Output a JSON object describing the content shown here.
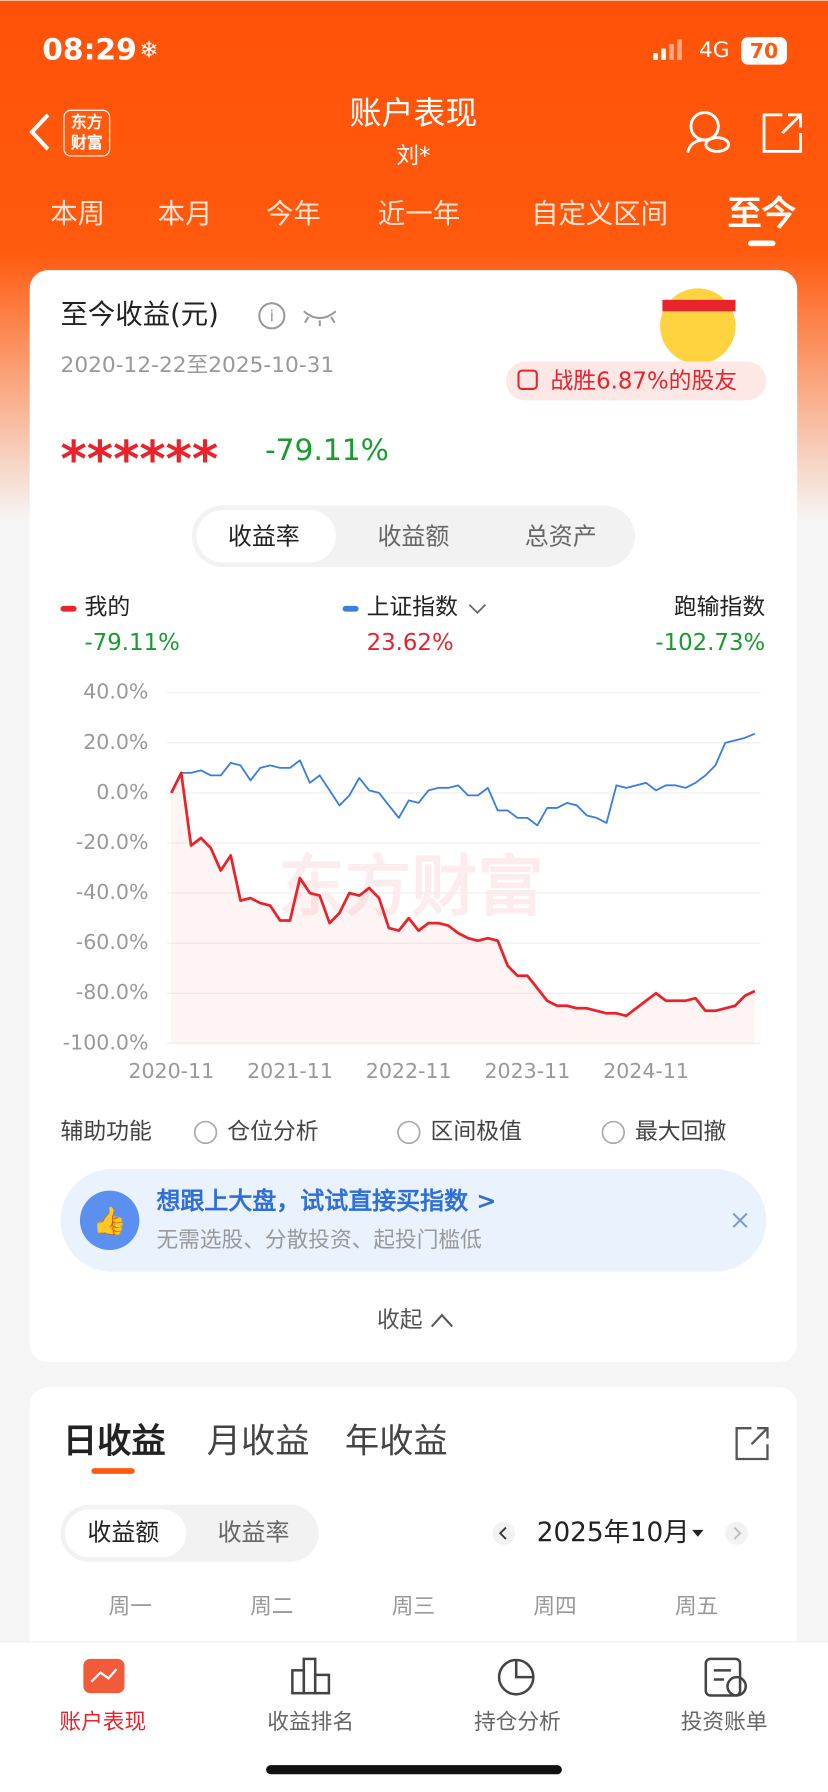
{
  "status_bar": {
    "time": "08:29",
    "network": "4G",
    "battery": "70"
  },
  "header": {
    "logo": [
      "东方",
      "财富"
    ],
    "title": "账户表现",
    "subtitle": "刘*"
  },
  "period_tabs": [
    "本周",
    "本月",
    "今年",
    "近一年",
    "自定义区间",
    "至今"
  ],
  "summary": {
    "title": "至今收益(元)",
    "date_range": "2020-12-22至2025-10-31",
    "badge": "战胜6.87%的股友",
    "amount": "******",
    "return": "-79.11%"
  },
  "metric_tabs": [
    "收益率",
    "收益额",
    "总资产"
  ],
  "chart_data": {
    "type": "line",
    "watermark": "东方财富",
    "series": [
      {
        "name": "我的",
        "color": "#e8232b",
        "summary": "-79.11%",
        "values": [
          0,
          8,
          -21,
          -18,
          -22,
          -31,
          -25,
          -43,
          -42,
          -44,
          -45,
          -51,
          -51,
          -34,
          -40,
          -41,
          -52,
          -48,
          -40,
          -41,
          -38,
          -42,
          -54,
          -55,
          -50,
          -55,
          -52,
          -52,
          -53,
          -56,
          -58,
          -59,
          -58,
          -59,
          -69,
          -73,
          -73,
          -78,
          -83,
          -85,
          -85,
          -86,
          -86,
          -87,
          -88,
          -88,
          -89,
          -86,
          -83,
          -80,
          -83,
          -83,
          -83,
          -82,
          -87,
          -87,
          -86,
          -85,
          -81,
          -79.11
        ]
      },
      {
        "name": "上证指数",
        "color": "#3a7ee0",
        "summary": "23.62%",
        "values": [
          0,
          8,
          8,
          9,
          7,
          7,
          12,
          11,
          5,
          10,
          11,
          10,
          10,
          13,
          4,
          7,
          1,
          -5,
          -1,
          6,
          1,
          0,
          -5,
          -10,
          -3,
          -4,
          1,
          2,
          2,
          3,
          -1,
          -1,
          2,
          -7,
          -7,
          -10,
          -10,
          -13,
          -6,
          -6,
          -4,
          -5,
          -9,
          -10,
          -12,
          3,
          2,
          3,
          4,
          1,
          3,
          3,
          2,
          4,
          7,
          11,
          20,
          21,
          22,
          23.62
        ]
      }
    ],
    "excess": {
      "label": "跑输指数",
      "value": "-102.73%"
    },
    "xlim": [
      0,
      59
    ],
    "xticks": [
      {
        "value": 0,
        "label": "2020-11"
      },
      {
        "value": 12,
        "label": "2021-11"
      },
      {
        "value": 24,
        "label": "2022-11"
      },
      {
        "value": 36,
        "label": "2023-11"
      },
      {
        "value": 48,
        "label": "2024-11"
      }
    ],
    "ylim": [
      -100,
      40
    ],
    "yticks": [
      {
        "value": 40,
        "label": "40.0%"
      },
      {
        "value": 20,
        "label": "20.0%"
      },
      {
        "value": 0,
        "label": "0.0%"
      },
      {
        "value": -20,
        "label": "-20.0%"
      },
      {
        "value": -40,
        "label": "-40.0%"
      },
      {
        "value": -60,
        "label": "-60.0%"
      },
      {
        "value": -80,
        "label": "-80.0%"
      },
      {
        "value": -100,
        "label": "-100.0%"
      }
    ],
    "grid": true
  },
  "tools": {
    "label": "辅助功能",
    "options": [
      "仓位分析",
      "区间极值",
      "最大回撤"
    ]
  },
  "banner": {
    "title": "想跟上大盘，试试直接买指数 >",
    "subtitle": "无需选股、分散投资、起投门槛低"
  },
  "collapse": "收起",
  "earnings_tabs": [
    "日收益",
    "月收益",
    "年收益"
  ],
  "earnings_metric": [
    "收益额",
    "收益率"
  ],
  "month": "2025年10月",
  "weekdays": [
    "周一",
    "周二",
    "周三",
    "周四",
    "周五"
  ],
  "nav": [
    "账户表现",
    "收益排名",
    "持仓分析",
    "投资账单"
  ]
}
